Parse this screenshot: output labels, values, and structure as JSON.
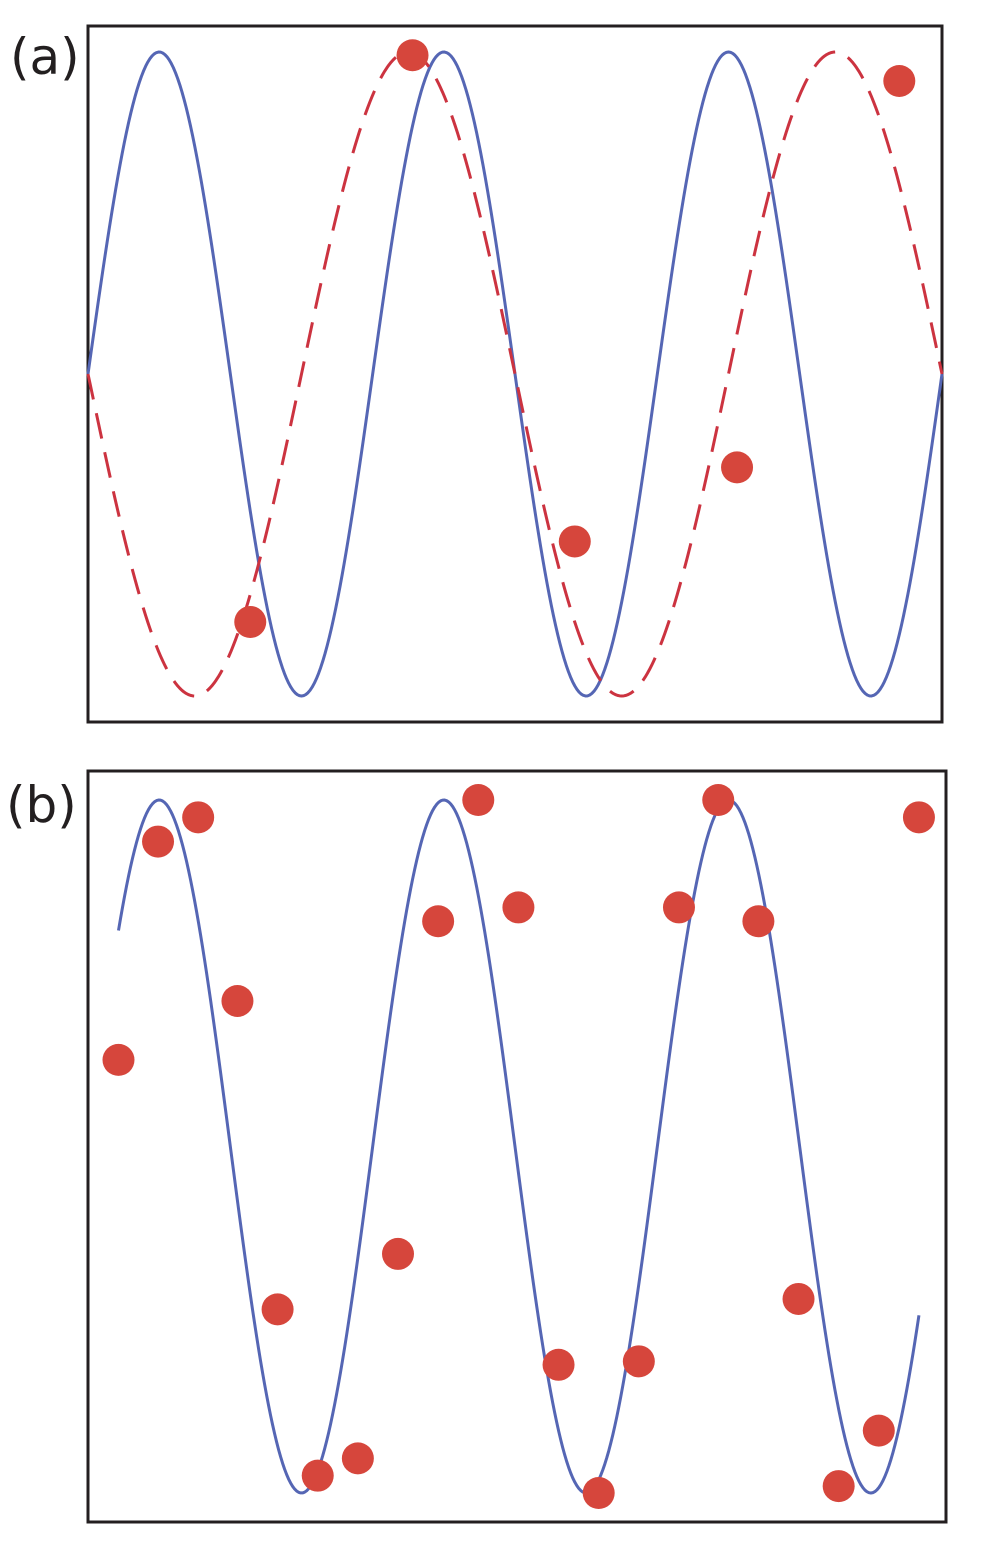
{
  "chart_data": [
    {
      "panel": "(a)",
      "type": "line",
      "title": "",
      "xlabel": "",
      "ylabel": "",
      "xlim": [
        0,
        10
      ],
      "ylim": [
        -1,
        1
      ],
      "grid": false,
      "axes_ticks": false,
      "series": [
        {
          "style": "solid",
          "color": "#5566b4",
          "function": "sin",
          "frequency": 0.3,
          "phase": 0,
          "amplitude": 1
        },
        {
          "style": "dashed",
          "color": "#cc3340",
          "function": "sin",
          "frequency": 0.2,
          "phase": 3.1416,
          "amplitude": 1
        }
      ],
      "samples": {
        "color": "#d6463c",
        "x": [
          1.9,
          3.8,
          5.7,
          7.6,
          9.5
        ],
        "y": [
          -0.77,
          0.99,
          -0.52,
          -0.29,
          0.91
        ]
      }
    },
    {
      "panel": "(b)",
      "type": "line",
      "title": "",
      "xlabel": "",
      "ylabel": "",
      "xlim": [
        0,
        10
      ],
      "ylim": [
        -1,
        1
      ],
      "grid": false,
      "axes_ticks": false,
      "series": [
        {
          "style": "solid",
          "color": "#5566b4",
          "function": "sin",
          "frequency": 0.3,
          "phase": 0,
          "amplitude": 1
        }
      ],
      "samples": {
        "color": "#d6463c",
        "x": [
          0.357,
          0.82,
          1.29,
          1.75,
          2.22,
          2.69,
          3.16,
          3.63,
          4.1,
          4.57,
          5.04,
          5.51,
          5.98,
          6.45,
          6.92,
          7.38,
          7.85,
          8.32,
          8.79,
          9.26,
          9.73
        ],
        "y": [
          0.25,
          0.88,
          0.95,
          0.42,
          -0.47,
          -0.95,
          -0.9,
          -0.31,
          0.65,
          1.0,
          0.69,
          -0.63,
          -1.0,
          -0.62,
          0.69,
          1.0,
          0.65,
          -0.44,
          -0.98,
          -0.82,
          0.95
        ]
      }
    }
  ],
  "labels": {
    "panel_a": "(a)",
    "panel_b": "(b)"
  }
}
